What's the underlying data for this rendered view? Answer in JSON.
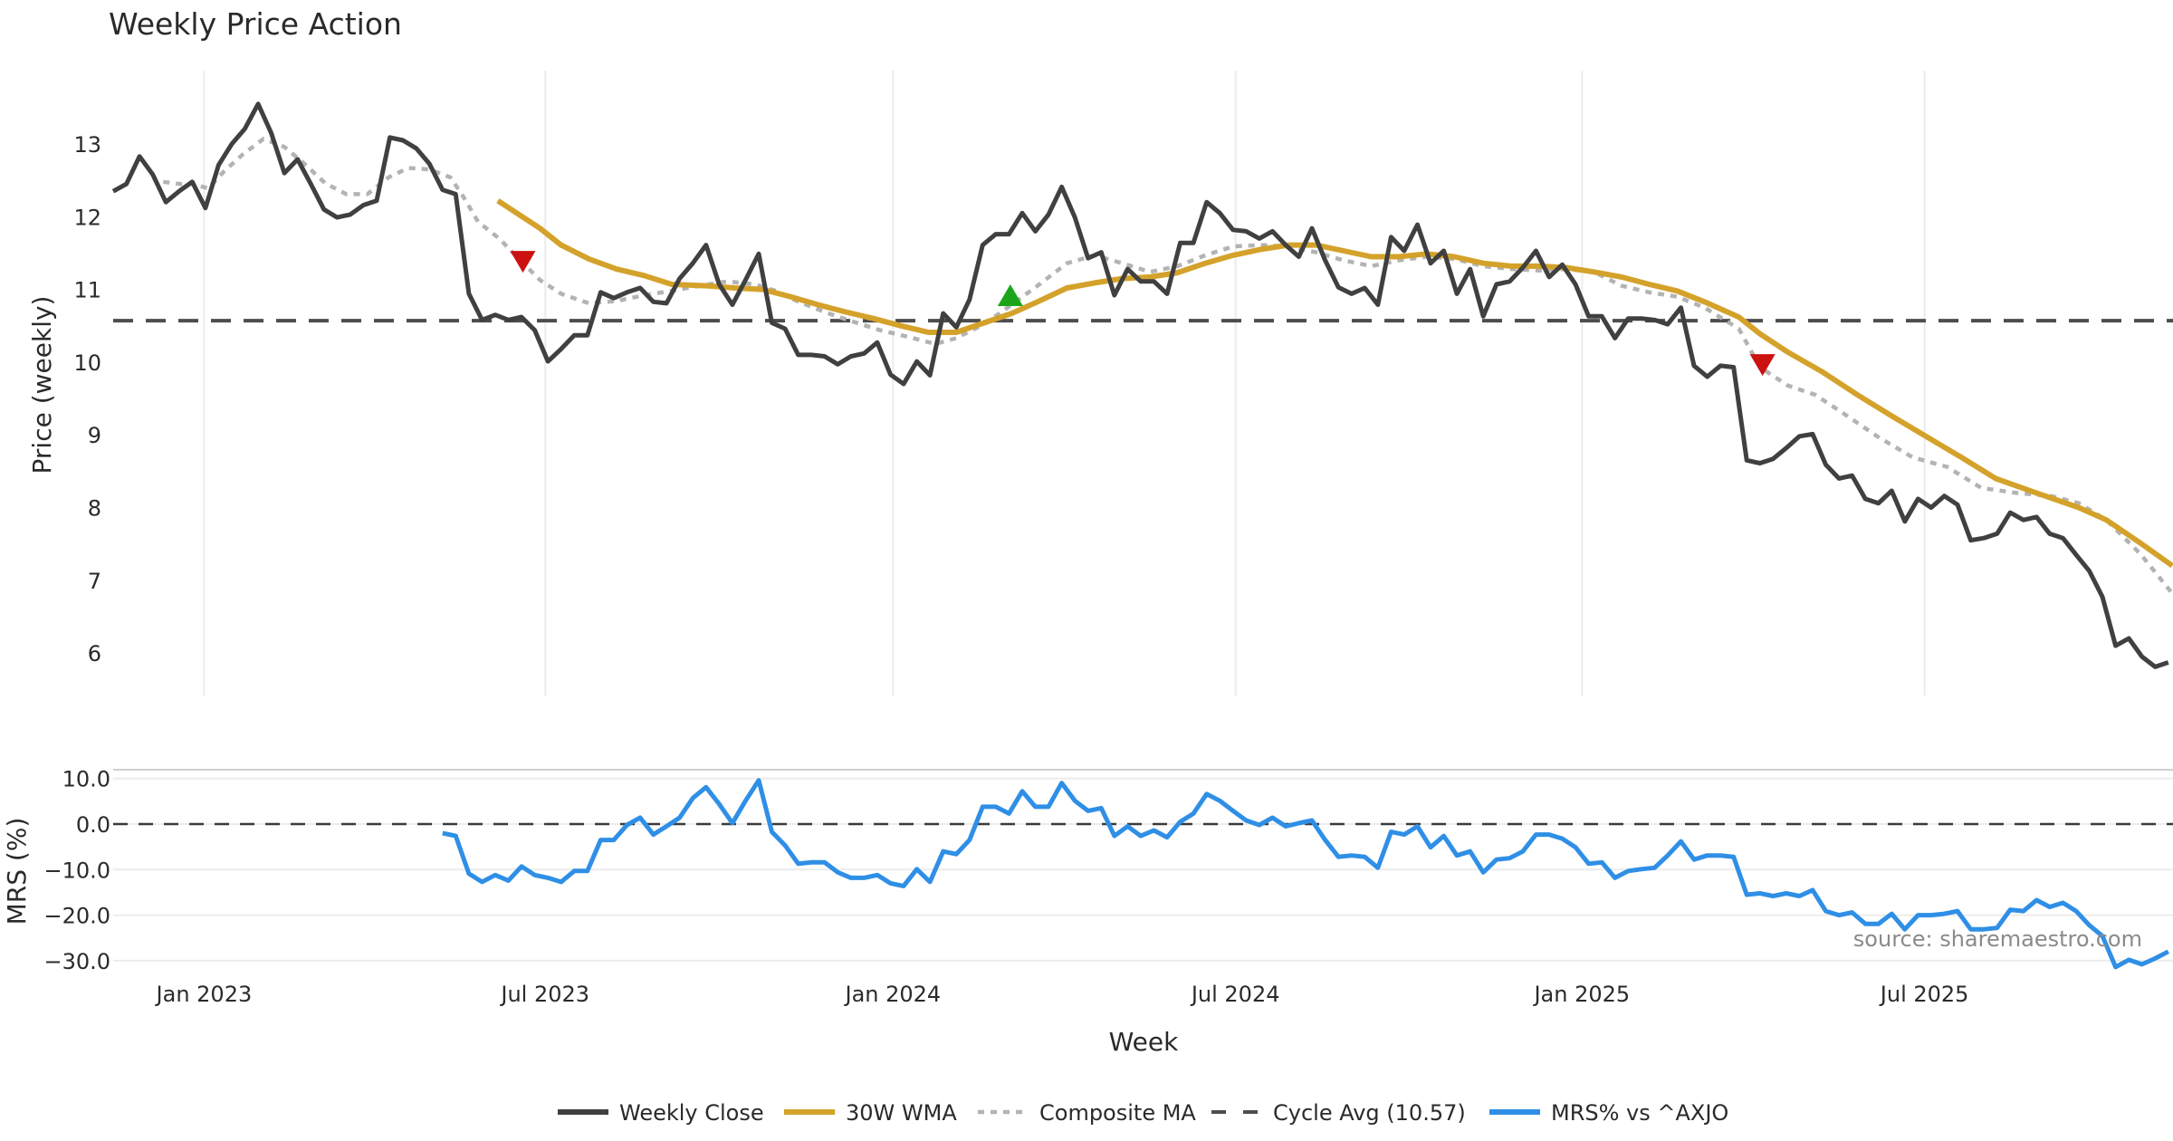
{
  "chart_data": [
    {
      "type": "line",
      "title": "Weekly Price Action",
      "ylabel": "Price (weekly)",
      "xlabel": "Week",
      "ylim": [
        5.5,
        14
      ],
      "yticks": [
        6,
        7,
        8,
        9,
        10,
        11,
        12,
        13
      ],
      "x_tick_labels": [
        {
          "label": "Jan 2023",
          "week_index": 6.9
        },
        {
          "label": "Jul 2023",
          "week_index": 32.8
        },
        {
          "label": "Jan 2024",
          "week_index": 59.2
        },
        {
          "label": "Jul 2024",
          "week_index": 85.2
        },
        {
          "label": "Jan 2025",
          "week_index": 111.5
        },
        {
          "label": "Jul 2025",
          "week_index": 137.5
        }
      ],
      "grid": "vertical",
      "cycle_avg": 10.57,
      "series": [
        {
          "name": "Weekly Close",
          "color": "#404040",
          "style": "solid",
          "start_week_index": 0,
          "values": [
            12.35,
            12.45,
            12.83,
            12.58,
            12.2,
            12.35,
            12.48,
            12.12,
            12.71,
            13.0,
            13.21,
            13.55,
            13.15,
            12.6,
            12.79,
            12.45,
            12.1,
            11.99,
            12.03,
            12.16,
            12.22,
            13.09,
            13.05,
            12.94,
            12.73,
            12.37,
            12.31,
            10.94,
            10.58,
            10.65,
            10.58,
            10.62,
            10.44,
            10.01,
            10.18,
            10.37,
            10.37,
            10.96,
            10.88,
            10.96,
            11.02,
            10.83,
            10.81,
            11.15,
            11.36,
            11.61,
            11.07,
            10.79,
            11.13,
            11.49,
            10.54,
            10.46,
            10.1,
            10.1,
            10.08,
            9.97,
            10.08,
            10.12,
            10.27,
            9.83,
            9.7,
            10.01,
            9.82,
            10.67,
            10.48,
            10.86,
            11.61,
            11.76,
            11.76,
            12.05,
            11.8,
            12.03,
            12.41,
            11.99,
            11.43,
            11.51,
            10.92,
            11.28,
            11.11,
            11.11,
            10.94,
            11.64,
            11.64,
            12.2,
            12.05,
            11.82,
            11.8,
            11.7,
            11.8,
            11.61,
            11.45,
            11.84,
            11.4,
            11.03,
            10.94,
            11.02,
            10.79,
            11.72,
            11.53,
            11.89,
            11.36,
            11.53,
            10.94,
            11.28,
            10.63,
            11.07,
            11.11,
            11.3,
            11.53,
            11.17,
            11.34,
            11.07,
            10.63,
            10.63,
            10.33,
            10.6,
            10.6,
            10.58,
            10.52,
            10.75,
            9.95,
            9.8,
            9.95,
            9.93,
            8.65,
            8.61,
            8.67,
            8.82,
            8.98,
            9.01,
            8.59,
            8.4,
            8.44,
            8.12,
            8.06,
            8.23,
            7.81,
            8.12,
            8.0,
            8.16,
            8.04,
            7.55,
            7.58,
            7.64,
            7.93,
            7.83,
            7.87,
            7.64,
            7.58,
            7.35,
            7.13,
            6.77,
            6.1,
            6.2,
            5.95,
            5.81,
            5.87
          ]
        },
        {
          "name": "30W WMA",
          "color": "#d4a22b",
          "style": "solid",
          "points": [
            [
              29.2,
              12.22
            ],
            [
              30.8,
              12.03
            ],
            [
              32.4,
              11.84
            ],
            [
              34.0,
              11.61
            ],
            [
              36.1,
              11.42
            ],
            [
              38.2,
              11.28
            ],
            [
              40.3,
              11.19
            ],
            [
              42.4,
              11.07
            ],
            [
              45.1,
              11.05
            ],
            [
              47.2,
              11.02
            ],
            [
              49.3,
              11.0
            ],
            [
              51.4,
              10.9
            ],
            [
              53.5,
              10.79
            ],
            [
              55.6,
              10.69
            ],
            [
              57.7,
              10.6
            ],
            [
              59.8,
              10.5
            ],
            [
              61.9,
              10.41
            ],
            [
              64.0,
              10.41
            ],
            [
              66.1,
              10.54
            ],
            [
              68.2,
              10.67
            ],
            [
              70.3,
              10.84
            ],
            [
              72.4,
              11.02
            ],
            [
              74.5,
              11.09
            ],
            [
              76.6,
              11.15
            ],
            [
              78.7,
              11.17
            ],
            [
              80.8,
              11.23
            ],
            [
              82.9,
              11.36
            ],
            [
              85.0,
              11.47
            ],
            [
              87.1,
              11.55
            ],
            [
              89.2,
              11.61
            ],
            [
              91.3,
              11.61
            ],
            [
              93.4,
              11.53
            ],
            [
              95.5,
              11.45
            ],
            [
              97.6,
              11.45
            ],
            [
              99.7,
              11.49
            ],
            [
              101.8,
              11.45
            ],
            [
              104.0,
              11.36
            ],
            [
              106.1,
              11.32
            ],
            [
              108.2,
              11.32
            ],
            [
              110.3,
              11.3
            ],
            [
              112.4,
              11.24
            ],
            [
              114.5,
              11.17
            ],
            [
              116.6,
              11.07
            ],
            [
              118.7,
              10.98
            ],
            [
              120.8,
              10.83
            ],
            [
              123.4,
              10.62
            ],
            [
              125.0,
              10.39
            ],
            [
              127.1,
              10.14
            ],
            [
              129.7,
              9.87
            ],
            [
              132.4,
              9.55
            ],
            [
              135.0,
              9.26
            ],
            [
              137.6,
              8.98
            ],
            [
              140.3,
              8.69
            ],
            [
              142.9,
              8.4
            ],
            [
              146.0,
              8.2
            ],
            [
              149.2,
              8.0
            ],
            [
              151.3,
              7.83
            ],
            [
              153.9,
              7.51
            ],
            [
              156.3,
              7.2
            ]
          ]
        },
        {
          "name": "Composite MA",
          "color": "#b3b3b3",
          "style": "dotted",
          "points": [
            [
              3.8,
              12.48
            ],
            [
              5.1,
              12.45
            ],
            [
              6.1,
              12.45
            ],
            [
              7.2,
              12.39
            ],
            [
              8.4,
              12.62
            ],
            [
              9.8,
              12.85
            ],
            [
              11.4,
              13.07
            ],
            [
              13.0,
              12.96
            ],
            [
              14.5,
              12.73
            ],
            [
              16.1,
              12.46
            ],
            [
              17.7,
              12.31
            ],
            [
              19.3,
              12.31
            ],
            [
              20.9,
              12.54
            ],
            [
              22.4,
              12.67
            ],
            [
              24.0,
              12.65
            ],
            [
              25.6,
              12.54
            ],
            [
              26.6,
              12.27
            ],
            [
              27.7,
              11.93
            ],
            [
              29.3,
              11.7
            ],
            [
              30.9,
              11.4
            ],
            [
              32.4,
              11.13
            ],
            [
              34.0,
              10.94
            ],
            [
              36.1,
              10.81
            ],
            [
              38.2,
              10.84
            ],
            [
              40.3,
              10.92
            ],
            [
              42.4,
              10.98
            ],
            [
              44.5,
              11.05
            ],
            [
              46.6,
              11.11
            ],
            [
              48.7,
              11.07
            ],
            [
              50.3,
              10.98
            ],
            [
              51.9,
              10.84
            ],
            [
              54.0,
              10.69
            ],
            [
              56.1,
              10.56
            ],
            [
              58.2,
              10.44
            ],
            [
              60.3,
              10.35
            ],
            [
              62.4,
              10.25
            ],
            [
              64.0,
              10.33
            ],
            [
              66.1,
              10.52
            ],
            [
              68.2,
              10.79
            ],
            [
              70.3,
              11.07
            ],
            [
              72.4,
              11.36
            ],
            [
              74.5,
              11.47
            ],
            [
              76.6,
              11.36
            ],
            [
              78.7,
              11.24
            ],
            [
              80.8,
              11.32
            ],
            [
              82.9,
              11.47
            ],
            [
              85.0,
              11.59
            ],
            [
              87.1,
              11.61
            ],
            [
              89.2,
              11.59
            ],
            [
              91.3,
              11.51
            ],
            [
              93.4,
              11.4
            ],
            [
              95.5,
              11.32
            ],
            [
              97.6,
              11.4
            ],
            [
              99.7,
              11.45
            ],
            [
              101.8,
              11.42
            ],
            [
              104.0,
              11.32
            ],
            [
              106.1,
              11.28
            ],
            [
              108.2,
              11.26
            ],
            [
              110.3,
              11.28
            ],
            [
              112.4,
              11.24
            ],
            [
              114.5,
              11.05
            ],
            [
              116.6,
              10.96
            ],
            [
              118.7,
              10.9
            ],
            [
              120.8,
              10.75
            ],
            [
              123.4,
              10.46
            ],
            [
              125.0,
              9.93
            ],
            [
              127.1,
              9.68
            ],
            [
              129.2,
              9.55
            ],
            [
              131.3,
              9.3
            ],
            [
              133.9,
              8.98
            ],
            [
              136.6,
              8.69
            ],
            [
              139.2,
              8.56
            ],
            [
              141.8,
              8.27
            ],
            [
              144.5,
              8.2
            ],
            [
              147.1,
              8.16
            ],
            [
              149.2,
              8.06
            ],
            [
              151.3,
              7.83
            ],
            [
              153.9,
              7.36
            ],
            [
              156.3,
              6.82
            ]
          ]
        },
        {
          "name": "Cycle Avg (10.57)",
          "color": "#4d4d4d",
          "style": "dashed",
          "value": 10.57
        }
      ],
      "signals": [
        {
          "type": "sell",
          "shape": "triangle-down",
          "color": "#cc1111",
          "week_index": 31.1,
          "value": 11.38
        },
        {
          "type": "buy",
          "shape": "triangle-up",
          "color": "#1aa51a",
          "week_index": 68.1,
          "value": 10.92
        },
        {
          "type": "sell",
          "shape": "triangle-down",
          "color": "#cc1111",
          "week_index": 125.2,
          "value": 9.96
        }
      ]
    },
    {
      "type": "line",
      "title": "",
      "ylabel": "MRS (%)",
      "xlabel": "Week",
      "ylim": [
        -33,
        12
      ],
      "yticks": [
        10,
        0,
        -10,
        -20,
        -30
      ],
      "ytick_labels": [
        "10.0",
        "0.0",
        "−10.0",
        "−20.0",
        "−30.0"
      ],
      "grid": "horizontal",
      "zero_line": 0,
      "series": [
        {
          "name": "MRS% vs ^AXJO",
          "color": "#2f8fe6",
          "style": "solid",
          "start_week_index": 25,
          "values": [
            -2.0,
            -2.6,
            -10.9,
            -12.7,
            -11.2,
            -12.4,
            -9.3,
            -11.2,
            -11.8,
            -12.7,
            -10.3,
            -10.3,
            -3.5,
            -3.5,
            -0.2,
            1.4,
            -2.3,
            -0.5,
            1.4,
            5.7,
            8.1,
            4.4,
            0.2,
            5.1,
            9.6,
            -1.7,
            -4.7,
            -8.7,
            -8.4,
            -8.4,
            -10.6,
            -11.8,
            -11.8,
            -11.2,
            -13.0,
            -13.6,
            -9.9,
            -12.7,
            -6.0,
            -6.6,
            -3.5,
            3.8,
            3.8,
            2.3,
            7.2,
            3.8,
            3.8,
            9.0,
            5.1,
            2.9,
            3.5,
            -2.6,
            -0.5,
            -2.6,
            -1.4,
            -2.9,
            0.5,
            2.3,
            6.6,
            5.1,
            2.9,
            0.8,
            -0.2,
            1.4,
            -0.5,
            0.2,
            0.8,
            -3.5,
            -7.2,
            -6.9,
            -7.2,
            -9.6,
            -1.7,
            -2.3,
            -0.5,
            -5.1,
            -2.6,
            -6.9,
            -6.0,
            -10.6,
            -7.8,
            -7.5,
            -6.0,
            -2.3,
            -2.3,
            -3.2,
            -5.1,
            -8.7,
            -8.4,
            -11.8,
            -10.3,
            -9.9,
            -9.6,
            -6.9,
            -3.8,
            -7.8,
            -6.9,
            -6.9,
            -7.2,
            -15.5,
            -15.2,
            -15.8,
            -15.2,
            -15.8,
            -14.5,
            -19.1,
            -20.0,
            -19.4,
            -21.9,
            -21.9,
            -19.7,
            -23.1,
            -20.0,
            -20.0,
            -19.7,
            -19.1,
            -23.1,
            -23.1,
            -22.8,
            -18.8,
            -19.1,
            -16.7,
            -18.2,
            -17.3,
            -19.1,
            -22.2,
            -24.6,
            -31.4,
            -29.8,
            -30.8,
            -29.5,
            -28.0
          ]
        }
      ]
    }
  ],
  "legend": {
    "placement": "bottom-center",
    "items": [
      {
        "label": "Weekly Close",
        "color": "#404040",
        "style": "solid"
      },
      {
        "label": "30W WMA",
        "color": "#d4a22b",
        "style": "solid"
      },
      {
        "label": "Composite MA",
        "color": "#b3b3b3",
        "style": "dotted"
      },
      {
        "label": "Cycle Avg (10.57)",
        "color": "#4d4d4d",
        "style": "dashed"
      },
      {
        "label": "MRS% vs ^AXJO",
        "color": "#2f8fe6",
        "style": "solid"
      }
    ]
  },
  "source": "source: sharemaestro.com"
}
